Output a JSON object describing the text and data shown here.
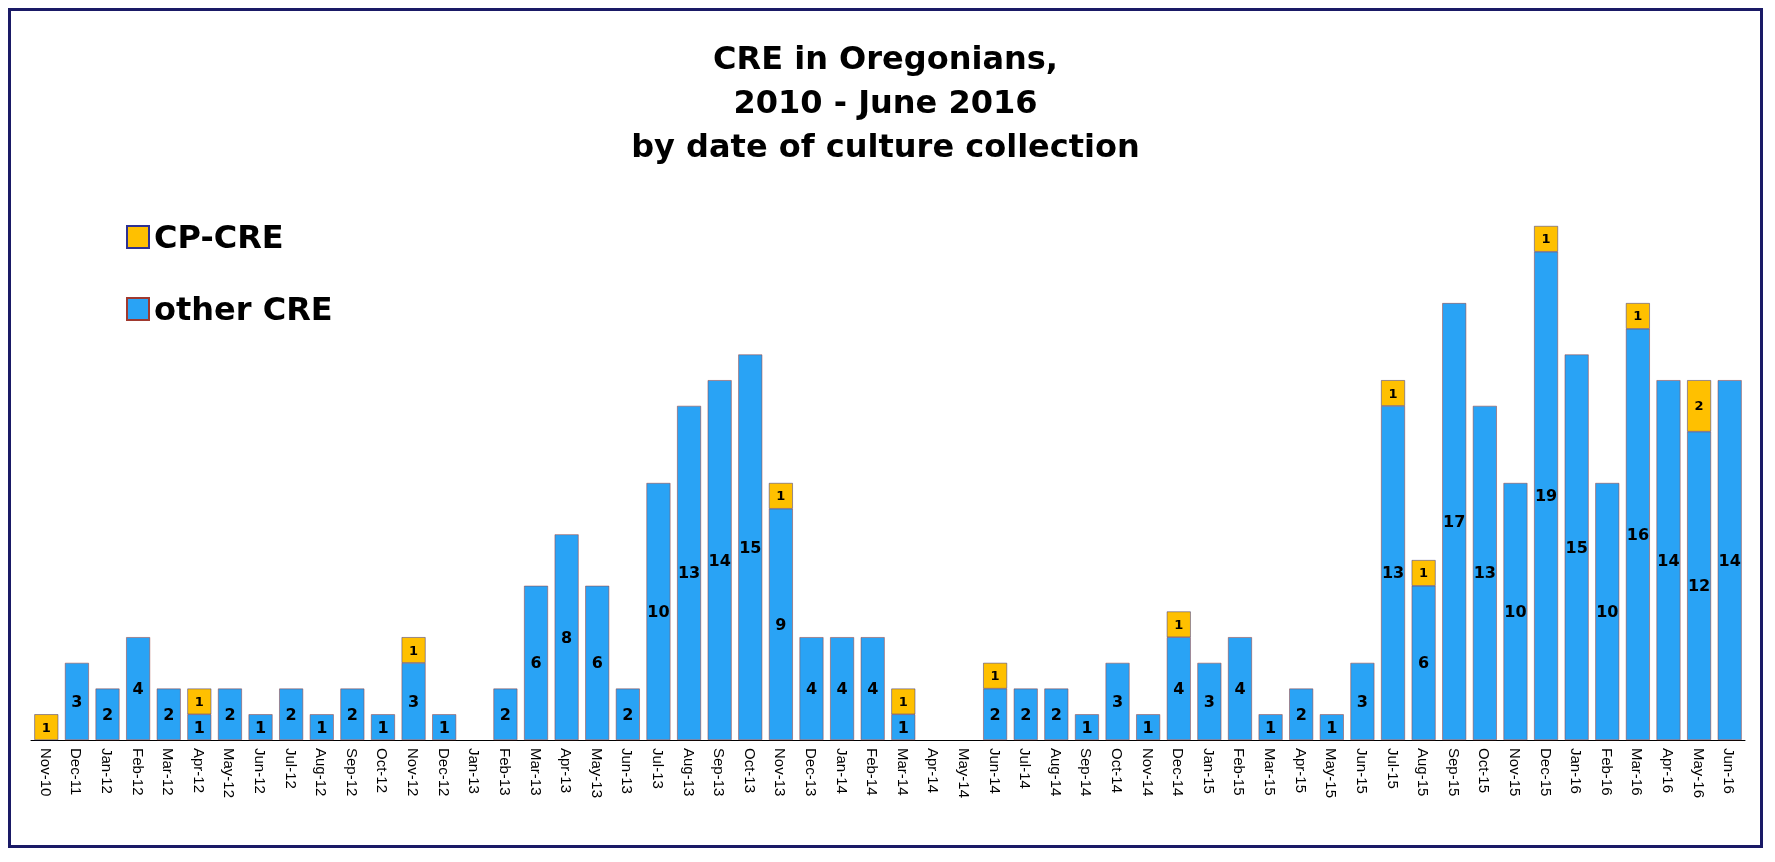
{
  "chart_data": {
    "type": "bar",
    "title": "CRE in Oregonians,\n2010 - June 2016\nby date of culture collection",
    "stacked": true,
    "data_labels": true,
    "legend": "top left",
    "categories": [
      "Nov-10",
      "Dec-11",
      "Jan-12",
      "Feb-12",
      "Mar-12",
      "Apr-12",
      "May-12",
      "Jun-12",
      "Jul-12",
      "Aug-12",
      "Sep-12",
      "Oct-12",
      "Nov-12",
      "Dec-12",
      "Jan-13",
      "Feb-13",
      "Mar-13",
      "Apr-13",
      "May-13",
      "Jun-13",
      "Jul-13",
      "Aug-13",
      "Sep-13",
      "Oct-13",
      "Nov-13",
      "Dec-13",
      "Jan-14",
      "Feb-14",
      "Mar-14",
      "Apr-14",
      "May-14",
      "Jun-14",
      "Jul-14",
      "Aug-14",
      "Sep-14",
      "Oct-14",
      "Nov-14",
      "Dec-14",
      "Jan-15",
      "Feb-15",
      "Mar-15",
      "Apr-15",
      "May-15",
      "Jun-15",
      "Jul-15",
      "Aug-15",
      "Sep-15",
      "Oct-15",
      "Nov-15",
      "Dec-15",
      "Jan-16",
      "Feb-16",
      "Mar-16",
      "Apr-16",
      "May-16",
      "Jun-16"
    ],
    "series": [
      {
        "name": "other CRE",
        "color": "#29a3f5",
        "values": [
          null,
          3,
          2,
          4,
          2,
          1,
          2,
          1,
          2,
          1,
          2,
          1,
          3,
          1,
          null,
          2,
          6,
          8,
          6,
          2,
          10,
          13,
          14,
          15,
          9,
          4,
          4,
          4,
          1,
          null,
          null,
          2,
          2,
          2,
          1,
          3,
          1,
          4,
          3,
          4,
          1,
          2,
          1,
          3,
          13,
          6,
          17,
          13,
          10,
          19,
          15,
          10,
          16,
          14,
          12,
          14
        ]
      },
      {
        "name": "CP-CRE",
        "color": "#ffc000",
        "values": [
          1,
          null,
          null,
          null,
          null,
          1,
          null,
          null,
          null,
          null,
          null,
          null,
          1,
          null,
          null,
          null,
          null,
          null,
          null,
          null,
          null,
          null,
          null,
          null,
          1,
          null,
          null,
          null,
          1,
          null,
          null,
          1,
          null,
          null,
          null,
          null,
          null,
          1,
          null,
          null,
          null,
          null,
          null,
          null,
          1,
          1,
          null,
          null,
          null,
          1,
          null,
          null,
          1,
          null,
          2,
          null
        ]
      }
    ]
  }
}
